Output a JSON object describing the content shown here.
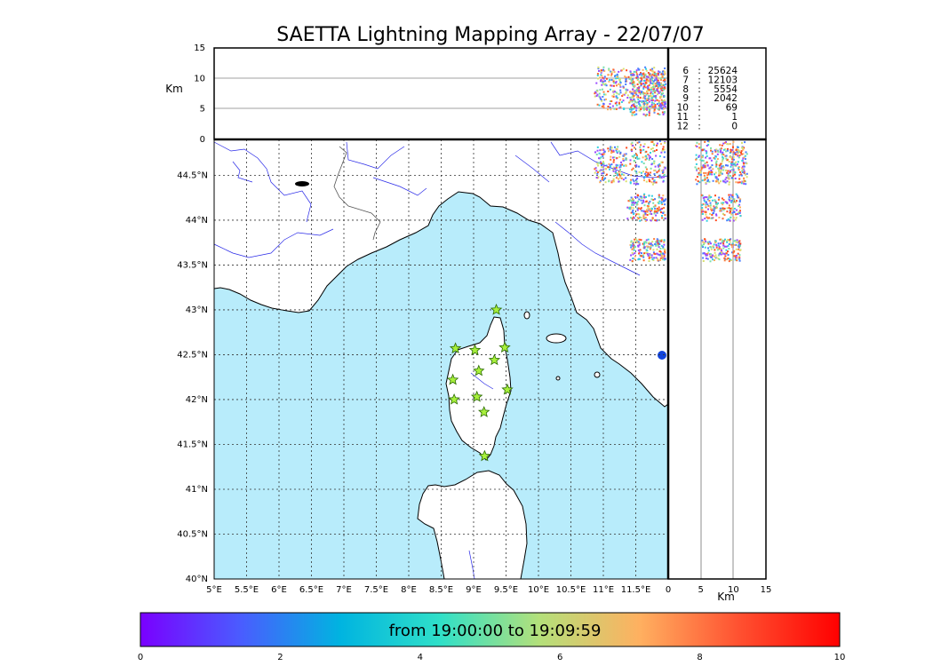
{
  "title": "SAETTA Lightning Mapping Array - 22/07/07",
  "colors": {
    "sea": "#b8ecfb",
    "land": "#ffffff",
    "coast": "#000000",
    "rivers": "#2a2ae8",
    "borders": "#555555",
    "grid": "#333333",
    "station_fill": "#a8f03c",
    "station_stroke": "#2a6a00",
    "highlight_text": "#ff0000"
  },
  "lon_ticks": [
    "5°E",
    "5.5°E",
    "6°E",
    "6.5°E",
    "7°E",
    "7.5°E",
    "8°E",
    "8.5°E",
    "9°E",
    "9.5°E",
    "10°E",
    "10.5°E",
    "11°E",
    "11.5°E"
  ],
  "lat_ticks": [
    "40°N",
    "40.5°N",
    "41°N",
    "41.5°N",
    "42°N",
    "42.5°N",
    "43°N",
    "43.5°N",
    "44°N",
    "44.5°N"
  ],
  "km_ticks": [
    "0",
    "5",
    "10",
    "15"
  ],
  "km_label": "Km",
  "altitude_stats": [
    {
      "level": "6",
      "count": "25624",
      "highlight": false
    },
    {
      "level": "7",
      "count": "12103",
      "highlight": true
    },
    {
      "level": "8",
      "count": "5554",
      "highlight": false
    },
    {
      "level": "9",
      "count": "2042",
      "highlight": false
    },
    {
      "level": "10",
      "count": "69",
      "highlight": false
    },
    {
      "level": "11",
      "count": "1",
      "highlight": false
    },
    {
      "level": "12",
      "count": "0",
      "highlight": false
    }
  ],
  "colorbar": {
    "text": "from 19:00:00 to 19:09:59",
    "ticks": [
      "0",
      "2",
      "4",
      "6",
      "8",
      "10"
    ],
    "stops": [
      "#7a00ff",
      "#4a5cff",
      "#00b4e0",
      "#30e0c8",
      "#b4e07a",
      "#ffb060",
      "#ff5030",
      "#ff0000"
    ]
  },
  "stations": [
    {
      "lon": 9.35,
      "lat": 43.0
    },
    {
      "lon": 8.72,
      "lat": 42.57
    },
    {
      "lon": 9.02,
      "lat": 42.55
    },
    {
      "lon": 9.48,
      "lat": 42.58
    },
    {
      "lon": 9.32,
      "lat": 42.44
    },
    {
      "lon": 9.08,
      "lat": 42.32
    },
    {
      "lon": 8.68,
      "lat": 42.22
    },
    {
      "lon": 9.52,
      "lat": 42.11
    },
    {
      "lon": 9.05,
      "lat": 42.03
    },
    {
      "lon": 8.7,
      "lat": 42.0
    },
    {
      "lon": 9.16,
      "lat": 41.86
    },
    {
      "lon": 9.17,
      "lat": 41.37
    }
  ],
  "lightning_clusters": [
    {
      "lon_min": 10.85,
      "lon_max": 11.35,
      "lat_min": 44.43,
      "lat_max": 44.83,
      "alt_min": 5,
      "alt_max": 12
    },
    {
      "lon_min": 11.4,
      "lon_max": 11.95,
      "lat_min": 44.4,
      "lat_max": 44.9,
      "alt_min": 4,
      "alt_max": 12
    },
    {
      "lon_min": 11.35,
      "lon_max": 11.95,
      "lat_min": 44.0,
      "lat_max": 44.3,
      "alt_min": 5,
      "alt_max": 11
    },
    {
      "lon_min": 11.4,
      "lon_max": 11.95,
      "lat_min": 43.55,
      "lat_max": 43.8,
      "alt_min": 5,
      "alt_max": 11
    }
  ]
}
